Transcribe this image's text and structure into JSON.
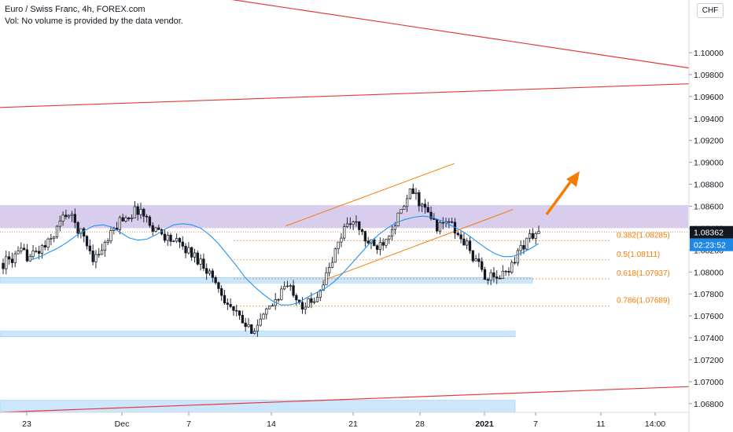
{
  "header": {
    "title": "Euro / Swiss Franc, 4h, FOREX.com",
    "volume_note": "Vol: No volume is provided by the data vendor."
  },
  "currency_badge": "CHF",
  "colors": {
    "up": "#26a69a",
    "down": "#ef5350",
    "candle": "#131722",
    "ma": "#2196f3",
    "trend": "#e53935",
    "channel": "#f57c00",
    "fib": "#f57c00",
    "zone_resistance": "#d1c4e9",
    "zone_support": "#bbdefb",
    "price_badge": "#131722",
    "timer_badge": "#1e88e5"
  },
  "chart_data": {
    "type": "candlestick",
    "title": "Euro / Swiss Franc, 4h, FOREX.com",
    "xlabel": "",
    "ylabel": "",
    "ylim": [
      1.0672,
      1.1048
    ],
    "x_ticks": [
      "23",
      "Dec",
      "7",
      "14",
      "21",
      "28",
      "2021",
      "7",
      "11",
      "14:00"
    ],
    "y_ticks": [
      "1.10000",
      "1.09800",
      "1.09600",
      "1.09400",
      "1.09200",
      "1.09000",
      "1.08800",
      "1.08600",
      "1.08400",
      "1.08200",
      "1.08000",
      "1.07800",
      "1.07600",
      "1.07400",
      "1.07200",
      "1.07000",
      "1.06800"
    ],
    "grid": false,
    "last_price": "1.08362",
    "countdown": "02:23:52",
    "close_path": [
      1.0808,
      1.0812,
      1.0817,
      1.0814,
      1.082,
      1.0826,
      1.0841,
      1.0855,
      1.0843,
      1.083,
      1.0812,
      1.0822,
      1.0835,
      1.0849,
      1.0852,
      1.0858,
      1.0845,
      1.0838,
      1.0832,
      1.0827,
      1.0822,
      1.0815,
      1.0808,
      1.0796,
      1.0782,
      1.0768,
      1.0758,
      1.0747,
      1.0752,
      1.0762,
      1.0775,
      1.0787,
      1.0783,
      1.077,
      1.0772,
      1.0786,
      1.0804,
      1.0828,
      1.0848,
      1.0842,
      1.0828,
      1.0822,
      1.083,
      1.0844,
      1.0856,
      1.0875,
      1.0862,
      1.085,
      1.084,
      1.0848,
      1.0833,
      1.0826,
      1.081,
      1.0798,
      1.0793,
      1.0797,
      1.0807,
      1.0822,
      1.0832,
      1.0836
    ],
    "moving_average": [
      1.0811,
      1.0814,
      1.0818,
      1.0822,
      1.0827,
      1.0833,
      1.0838,
      1.0842,
      1.0843,
      1.0841,
      1.0836,
      1.0831,
      1.0829,
      1.083,
      1.0834,
      1.0839,
      1.0843,
      1.0844,
      1.0843,
      1.084,
      1.0834,
      1.0826,
      1.0816,
      1.0806,
      1.0795,
      1.0787,
      1.078,
      1.0774,
      1.077,
      1.077,
      1.0772,
      1.0777,
      1.0781,
      1.0785,
      1.0791,
      1.0799,
      1.0808,
      1.0817,
      1.0826,
      1.0834,
      1.084,
      1.0845,
      1.0848,
      1.085,
      1.0851,
      1.085,
      1.0847,
      1.0843,
      1.0839,
      1.0834,
      1.0828,
      1.0822,
      1.0817,
      1.0814,
      1.0814,
      1.0817,
      1.0821,
      1.0826
    ],
    "fib_levels": [
      {
        "label": "0.382(1.08285)",
        "price": 1.08285
      },
      {
        "label": "0.5(1.08111)",
        "price": 1.08111
      },
      {
        "label": "0.618(1.07937)",
        "price": 1.07937
      },
      {
        "label": "0.786(1.07689)",
        "price": 1.07689
      }
    ],
    "resistance_zone": {
      "low": 1.084,
      "high": 1.0861
    },
    "support_zones": [
      {
        "low": 1.079,
        "high": 1.0795
      },
      {
        "low": 1.0741,
        "high": 1.0746
      },
      {
        "low": 1.0672,
        "high": 1.0683
      }
    ],
    "trend_lines": [
      {
        "from": [
          0,
          1.108
        ],
        "to": [
          1,
          1.098
        ]
      },
      {
        "from": [
          0,
          1.095
        ],
        "to": [
          1,
          1.0973
        ]
      },
      {
        "from": [
          0,
          1.0672
        ],
        "to": [
          1,
          1.0697
        ]
      }
    ],
    "channel_lines": [
      {
        "from": [
          0.39,
          1.0842
        ],
        "to": [
          0.62,
          1.0899
        ]
      },
      {
        "from": [
          0.44,
          1.0792
        ],
        "to": [
          0.7,
          1.0857
        ]
      }
    ]
  }
}
